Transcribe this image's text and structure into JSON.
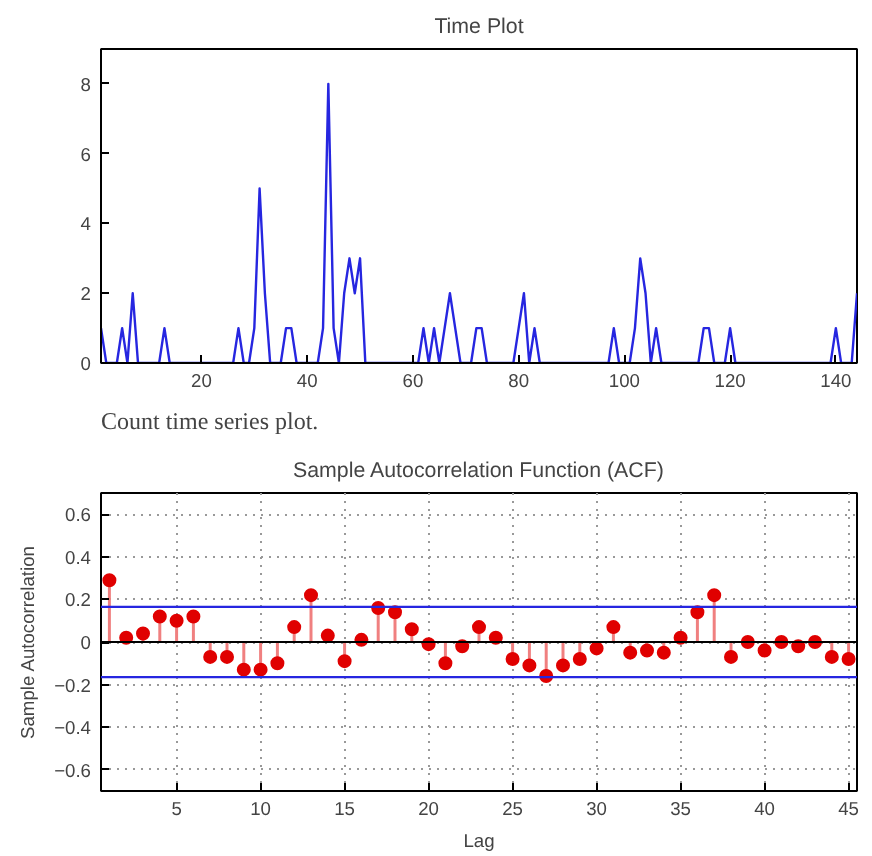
{
  "chart_data": [
    {
      "type": "line",
      "title": "Time Plot",
      "annotations": [
        "Count time series plot."
      ],
      "color": "#2626e0",
      "grid": false,
      "xlim": [
        1,
        144
      ],
      "ylim": [
        0,
        9
      ],
      "xticks": [
        20,
        40,
        60,
        80,
        100,
        120,
        140
      ],
      "yticks": [
        0,
        2,
        4,
        6,
        8
      ],
      "x": [
        1,
        2,
        3,
        4,
        5,
        6,
        7,
        8,
        9,
        10,
        11,
        12,
        13,
        14,
        15,
        16,
        17,
        18,
        19,
        20,
        21,
        22,
        23,
        24,
        25,
        26,
        27,
        28,
        29,
        30,
        31,
        32,
        33,
        34,
        35,
        36,
        37,
        38,
        39,
        40,
        41,
        42,
        43,
        44,
        45,
        46,
        47,
        48,
        49,
        50,
        51,
        52,
        53,
        54,
        55,
        56,
        57,
        58,
        59,
        60,
        61,
        62,
        63,
        64,
        65,
        66,
        67,
        68,
        69,
        70,
        71,
        72,
        73,
        74,
        75,
        76,
        77,
        78,
        79,
        80,
        81,
        82,
        83,
        84,
        85,
        86,
        87,
        88,
        89,
        90,
        91,
        92,
        93,
        94,
        95,
        96,
        97,
        98,
        99,
        100,
        101,
        102,
        103,
        104,
        105,
        106,
        107,
        108,
        109,
        110,
        111,
        112,
        113,
        114,
        115,
        116,
        117,
        118,
        119,
        120,
        121,
        122,
        123,
        124,
        125,
        126,
        127,
        128,
        129,
        130,
        131,
        132,
        133,
        134,
        135,
        136,
        137,
        138,
        139,
        140,
        141,
        142,
        143,
        144
      ],
      "values": [
        1,
        0,
        0,
        0,
        1,
        0,
        2,
        0,
        0,
        0,
        0,
        0,
        1,
        0,
        0,
        0,
        0,
        0,
        0,
        0,
        0,
        0,
        0,
        0,
        0,
        0,
        1,
        0,
        0,
        1,
        5,
        2,
        0,
        0,
        0,
        1,
        1,
        0,
        0,
        0,
        0,
        0,
        1,
        8,
        1,
        0,
        2,
        3,
        2,
        3,
        0,
        0,
        0,
        0,
        0,
        0,
        0,
        0,
        0,
        0,
        0,
        1,
        0,
        1,
        0,
        1,
        2,
        1,
        0,
        0,
        0,
        1,
        1,
        0,
        0,
        0,
        0,
        0,
        0,
        1,
        2,
        0,
        1,
        0,
        0,
        0,
        0,
        0,
        0,
        0,
        0,
        0,
        0,
        0,
        0,
        0,
        0,
        1,
        0,
        0,
        0,
        1,
        3,
        2,
        0,
        1,
        0,
        0,
        0,
        0,
        0,
        0,
        0,
        0,
        1,
        1,
        0,
        0,
        0,
        1,
        0,
        0,
        0,
        0,
        0,
        0,
        0,
        0,
        0,
        0,
        0,
        0,
        0,
        0,
        0,
        0,
        0,
        0,
        0,
        1,
        0,
        0,
        0,
        2
      ]
    },
    {
      "type": "lollipop",
      "title": "Sample Autocorrelation Function (ACF)",
      "xlabel": "Lag",
      "ylabel": "Sample Autocorrelation",
      "color": "#e00000",
      "marker": "circle",
      "grid": true,
      "xlim": [
        0.5,
        45.5
      ],
      "ylim": [
        -0.7,
        0.7
      ],
      "xticks": [
        5,
        10,
        15,
        20,
        25,
        30,
        35,
        40,
        45
      ],
      "yticks": [
        -0.6,
        -0.4,
        -0.2,
        0,
        0.2,
        0.4,
        0.6
      ],
      "ref_lines": [
        {
          "axis": "y",
          "value": 0.165,
          "color": "#2626e0"
        },
        {
          "axis": "y",
          "value": -0.165,
          "color": "#2626e0"
        }
      ],
      "x": [
        1,
        2,
        3,
        4,
        5,
        6,
        7,
        8,
        9,
        10,
        11,
        12,
        13,
        14,
        15,
        16,
        17,
        18,
        19,
        20,
        21,
        22,
        23,
        24,
        25,
        26,
        27,
        28,
        29,
        30,
        31,
        32,
        33,
        34,
        35,
        36,
        37,
        38,
        39,
        40,
        41,
        42,
        43,
        44,
        45
      ],
      "values": [
        0.29,
        0.02,
        0.04,
        0.12,
        0.1,
        0.12,
        -0.07,
        -0.07,
        -0.13,
        -0.13,
        -0.1,
        0.07,
        0.22,
        0.03,
        -0.09,
        0.01,
        0.16,
        0.14,
        0.06,
        -0.01,
        -0.1,
        -0.02,
        0.07,
        0.02,
        -0.08,
        -0.11,
        -0.16,
        -0.11,
        -0.08,
        -0.03,
        0.07,
        -0.05,
        -0.04,
        -0.05,
        0.02,
        0.14,
        0.22,
        -0.07,
        0,
        -0.04,
        0,
        -0.02,
        0,
        -0.07,
        -0.08
      ]
    }
  ]
}
